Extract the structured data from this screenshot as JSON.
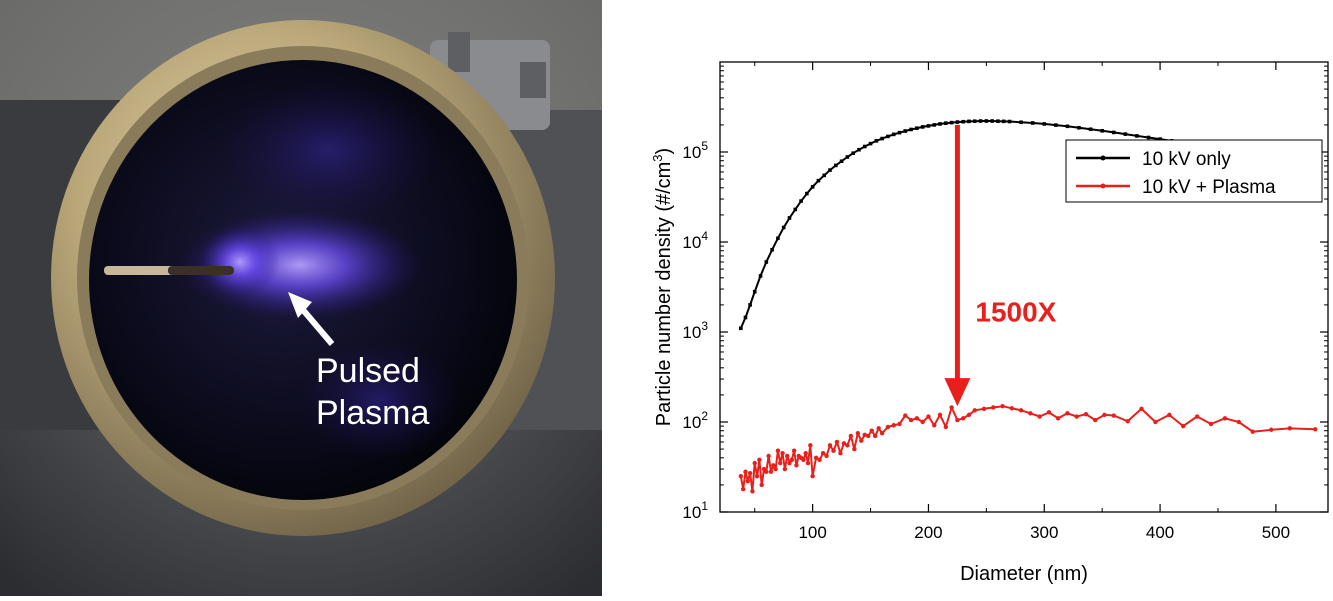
{
  "photo": {
    "label_line1": "Pulsed",
    "label_line2": "Plasma"
  },
  "chart_data": {
    "type": "line",
    "title": "",
    "xlabel": "Diameter (nm)",
    "ylabel": "Particle number density  (#/cm",
    "ylabel_sup": "3",
    "ylabel_close": ")",
    "yscale": "log",
    "xlim": [
      20,
      545
    ],
    "ylim": [
      10,
      1000000
    ],
    "xticks": [
      100,
      200,
      300,
      400,
      500
    ],
    "yticks": [
      {
        "value": 10,
        "base": "10",
        "exp": "1"
      },
      {
        "value": 100,
        "base": "10",
        "exp": "2"
      },
      {
        "value": 1000,
        "base": "10",
        "exp": "3"
      },
      {
        "value": 10000,
        "base": "10",
        "exp": "4"
      },
      {
        "value": 100000,
        "base": "10",
        "exp": "5"
      }
    ],
    "grid": false,
    "legend_position": "top-right",
    "annotation": {
      "text": "1500X",
      "x": 225,
      "y_from": 200000,
      "y_to": 150,
      "color": "#e8201c"
    },
    "series": [
      {
        "name": "10 kV only",
        "color": "#000000",
        "x": [
          38,
          42,
          46,
          50,
          55,
          60,
          65,
          70,
          75,
          80,
          85,
          90,
          95,
          100,
          105,
          110,
          115,
          120,
          125,
          130,
          135,
          140,
          145,
          150,
          155,
          160,
          165,
          170,
          175,
          180,
          185,
          190,
          195,
          200,
          205,
          210,
          215,
          220,
          225,
          230,
          235,
          240,
          245,
          250,
          255,
          260,
          265,
          270,
          280,
          290,
          300,
          310,
          320,
          330,
          340,
          350,
          360,
          370,
          380,
          390,
          400,
          410,
          420,
          430,
          440,
          450,
          460,
          470,
          480,
          490,
          500,
          510,
          520,
          534
        ],
        "y": [
          1100,
          1450,
          2000,
          2800,
          4200,
          6000,
          8200,
          11000,
          14500,
          18500,
          23000,
          28500,
          34500,
          41000,
          48000,
          55000,
          63000,
          71000,
          79000,
          88000,
          97000,
          106000,
          115000,
          124000,
          133000,
          141000,
          149000,
          157000,
          164000,
          171000,
          178000,
          184000,
          190000,
          195000,
          200000,
          205000,
          209000,
          212000,
          215000,
          217000,
          219000,
          220000,
          221000,
          221000,
          221000,
          220000,
          219000,
          218000,
          214000,
          210000,
          205000,
          199000,
          193000,
          186000,
          179000,
          172000,
          165000,
          158000,
          151000,
          145000,
          139000,
          133000,
          128000,
          123000,
          119000,
          115000,
          111000,
          108000,
          105000,
          102000,
          99500,
          97500,
          95500,
          93000
        ]
      },
      {
        "name": "10 kV + Plasma",
        "color": "#e8201c",
        "x": [
          38,
          40,
          42,
          44,
          46,
          48,
          50,
          52,
          54,
          56,
          58,
          60,
          62,
          64,
          66,
          68,
          70,
          72,
          74,
          76,
          78,
          80,
          82,
          84,
          86,
          88,
          90,
          92,
          94,
          96,
          98,
          100,
          103,
          106,
          109,
          112,
          115,
          118,
          121,
          124,
          127,
          130,
          133,
          136,
          139,
          142,
          145,
          148,
          151,
          154,
          157,
          160,
          165,
          170,
          175,
          180,
          185,
          190,
          195,
          200,
          205,
          210,
          215,
          220,
          225,
          230,
          235,
          240,
          248,
          256,
          264,
          272,
          280,
          288,
          296,
          304,
          312,
          320,
          328,
          336,
          344,
          352,
          360,
          372,
          384,
          396,
          408,
          420,
          432,
          444,
          456,
          468,
          480,
          496,
          512,
          534
        ],
        "y": [
          25,
          18,
          28,
          22,
          27,
          17,
          35,
          25,
          38,
          20,
          30,
          28,
          42,
          28,
          33,
          30,
          48,
          35,
          45,
          30,
          42,
          35,
          38,
          48,
          33,
          42,
          40,
          38,
          45,
          35,
          55,
          25,
          40,
          38,
          45,
          42,
          55,
          48,
          60,
          45,
          58,
          55,
          70,
          50,
          75,
          62,
          72,
          70,
          80,
          70,
          85,
          75,
          88,
          92,
          95,
          118,
          105,
          110,
          100,
          115,
          92,
          120,
          88,
          145,
          105,
          110,
          120,
          135,
          140,
          145,
          150,
          142,
          135,
          125,
          115,
          128,
          110,
          125,
          115,
          122,
          105,
          120,
          118,
          102,
          140,
          100,
          120,
          90,
          115,
          95,
          110,
          100,
          78,
          82,
          85,
          83
        ]
      }
    ]
  }
}
